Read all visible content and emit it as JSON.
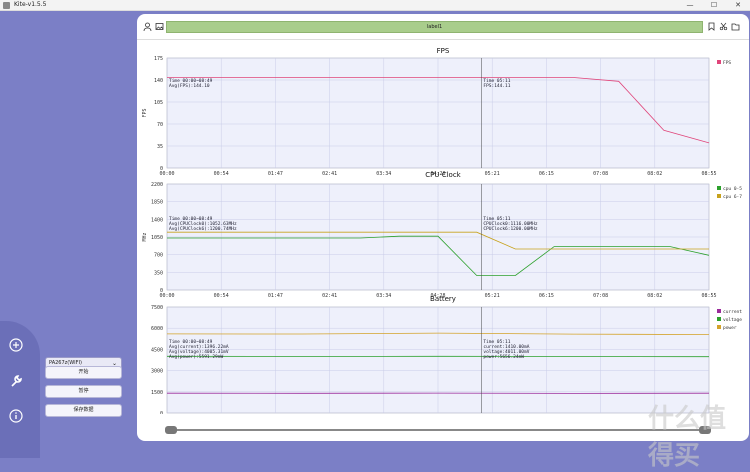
{
  "window": {
    "title": "Kite-v1.5.5",
    "minimize": "—",
    "maximize": "☐",
    "close": "✕"
  },
  "sidebar": {
    "icons": [
      "plus-icon",
      "wrench-icon",
      "info-icon"
    ],
    "device_select": "PA267z(WIFI)",
    "buttons": {
      "start": "开始",
      "pause": "暂停",
      "save": "保存数据"
    }
  },
  "toolbar": {
    "label": "label1"
  },
  "charts": {
    "fps": {
      "title": "FPS",
      "ylabel": "FPS",
      "yticks": [
        "175",
        "140",
        "105",
        "70",
        "35",
        "0"
      ],
      "legend": [
        "FPS"
      ],
      "cursor_left": [
        "Time 00:00~08:49",
        "Avg(FPS):144.10"
      ],
      "cursor_right": [
        "Time 05:11",
        "FPS:144.11"
      ]
    },
    "cpu": {
      "title": "CPU Clock",
      "ylabel": "MHz",
      "yticks": [
        "2200",
        "1850",
        "1400",
        "1050",
        "700",
        "350",
        "0"
      ],
      "legend": [
        "cpu 0-5",
        "cpu 6-7"
      ],
      "cursor_left": [
        "Time 00:00~08:49",
        "Avg(CPUClock0):1052.63MHz",
        "Avg(CPUClock6):1200.74MHz"
      ],
      "cursor_right": [
        "Time 05:11",
        "CPUClock0:1116.00MHz",
        "CPUClock6:1200.00MHz"
      ]
    },
    "battery": {
      "title": "Battery",
      "ylabel": "",
      "yticks": [
        "7500",
        "6000",
        "4500",
        "3000",
        "1500",
        "0"
      ],
      "legend": [
        "current",
        "voltage",
        "power"
      ],
      "cursor_left": [
        "Time 00:00~08:49",
        "Avg(current):1396.22mA",
        "Avg(voltage):4005.31mV",
        "Avg(power):5591.29mW"
      ],
      "cursor_right": [
        "Time 05:11",
        "current:1410.00mA",
        "voltage:4011.00mV",
        "power:5656.24mW"
      ]
    },
    "xticks": [
      "00:00",
      "00:54",
      "01:47",
      "02:41",
      "03:34",
      "04:28",
      "05:21",
      "06:15",
      "07:08",
      "08:02",
      "08:55"
    ]
  },
  "chart_data": [
    {
      "type": "line",
      "title": "FPS",
      "ylabel": "FPS",
      "ylim": [
        0,
        175
      ],
      "series": [
        {
          "name": "FPS",
          "color": "#e0457a",
          "values": [
            144,
            144,
            144,
            144,
            144,
            144,
            144,
            144,
            144,
            144,
            138,
            60,
            40
          ]
        }
      ]
    },
    {
      "type": "line",
      "title": "CPU Clock",
      "ylabel": "MHz",
      "ylim": [
        0,
        2200
      ],
      "series": [
        {
          "name": "cpu 0-5",
          "color": "#2ca02c",
          "values": [
            1080,
            1080,
            1080,
            1080,
            1080,
            1080,
            1116,
            1116,
            300,
            300,
            900,
            900,
            900,
            900,
            720
          ]
        },
        {
          "name": "cpu 6-7",
          "color": "#c7a21c",
          "values": [
            1200,
            1200,
            1200,
            1200,
            1200,
            1200,
            1200,
            1200,
            1200,
            850,
            850,
            850,
            850,
            850,
            850
          ]
        }
      ]
    },
    {
      "type": "line",
      "title": "Battery",
      "ylim": [
        0,
        7500
      ],
      "series": [
        {
          "name": "current",
          "color": "#9b2b9b",
          "values": [
            1400,
            1396,
            1410,
            1390,
            1400
          ]
        },
        {
          "name": "voltage",
          "color": "#2ca02c",
          "values": [
            4010,
            4005,
            4011,
            4000,
            3980
          ]
        },
        {
          "name": "power",
          "color": "#d4a32a",
          "values": [
            5600,
            5590,
            5656,
            5580,
            5550
          ]
        }
      ]
    }
  ],
  "watermark": "什么值得买"
}
